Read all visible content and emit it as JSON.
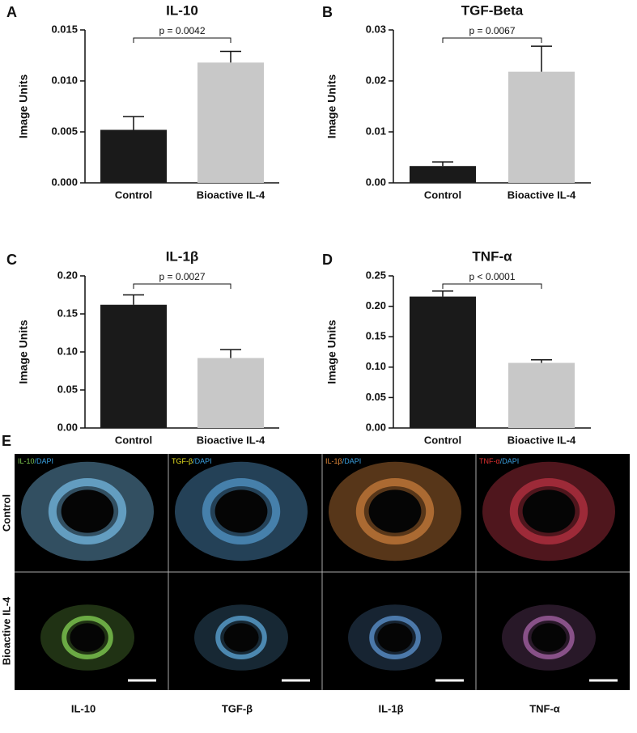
{
  "chart_data": [
    {
      "type": "bar",
      "panel": "A",
      "title": "IL-10",
      "y_label": "Image Units",
      "categories": [
        "Control",
        "Bioactive IL-4"
      ],
      "values": [
        0.0052,
        0.0118
      ],
      "errors": [
        0.0013,
        0.0011
      ],
      "colors": [
        "#1a1a1a",
        "#c8c8c8"
      ],
      "annotation": "p = 0.0042",
      "ylim": [
        0,
        0.015
      ],
      "yticks": [
        {
          "value": 0,
          "label": "0.000"
        },
        0.005,
        {
          "value": 0.01,
          "label": "0.010"
        },
        0.015
      ]
    },
    {
      "type": "bar",
      "panel": "B",
      "title": "TGF-Beta",
      "y_label": "Image Units",
      "categories": [
        "Control",
        "Bioactive IL-4"
      ],
      "values": [
        0.0033,
        0.0218
      ],
      "errors": [
        0.0008,
        0.005
      ],
      "colors": [
        "#1a1a1a",
        "#c8c8c8"
      ],
      "annotation": "p = 0.0067",
      "ylim": [
        0,
        0.03
      ],
      "yticks": [
        {
          "value": 0,
          "label": "0.00"
        },
        0.01,
        0.02,
        0.03
      ]
    },
    {
      "type": "bar",
      "panel": "C",
      "title": "IL-1β",
      "y_label": "Image Units",
      "categories": [
        "Control",
        "Bioactive IL-4"
      ],
      "values": [
        0.162,
        0.092
      ],
      "errors": [
        0.013,
        0.011
      ],
      "colors": [
        "#1a1a1a",
        "#c8c8c8"
      ],
      "annotation": "p = 0.0027",
      "ylim": [
        0,
        0.2
      ],
      "yticks": [
        {
          "value": 0,
          "label": "0.00"
        },
        0.05,
        {
          "value": 0.1,
          "label": "0.10"
        },
        0.15,
        {
          "value": 0.2,
          "label": "0.20"
        }
      ]
    },
    {
      "type": "bar",
      "panel": "D",
      "title": "TNF-α",
      "y_label": "Image Units",
      "categories": [
        "Control",
        "Bioactive IL-4"
      ],
      "values": [
        0.216,
        0.107
      ],
      "errors": [
        0.009,
        0.005
      ],
      "colors": [
        "#1a1a1a",
        "#c8c8c8"
      ],
      "annotation": "p < 0.0001",
      "ylim": [
        0,
        0.25
      ],
      "yticks": [
        {
          "value": 0,
          "label": "0.00"
        },
        0.05,
        {
          "value": 0.1,
          "label": "0.10"
        },
        0.15,
        {
          "value": 0.2,
          "label": "0.20"
        },
        0.25
      ]
    }
  ],
  "panel_e": {
    "panel": "E",
    "rows": [
      "Control",
      "Bioactive IL-4"
    ],
    "columns": [
      "IL-10",
      "TGF-β",
      "IL-1β",
      "TNF-α"
    ],
    "stains": [
      {
        "marker": "IL-10",
        "dapi": "/DAPI"
      },
      {
        "marker": "TGF-β",
        "dapi": "/DAPI"
      },
      {
        "marker": "IL-1β",
        "dapi": "/DAPI"
      },
      {
        "marker": "TNF-α",
        "dapi": "/DAPI"
      }
    ]
  }
}
